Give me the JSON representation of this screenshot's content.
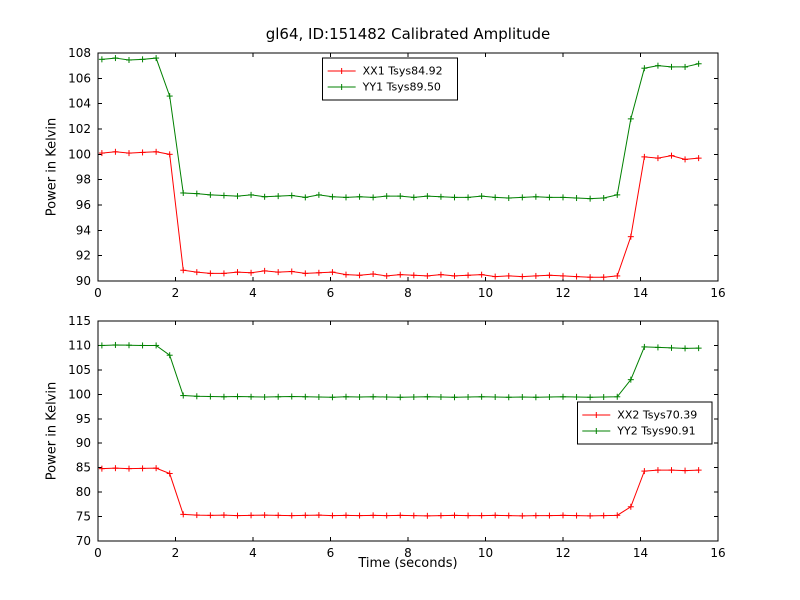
{
  "figure": {
    "title": "gl64, ID:151482 Calibrated Amplitude",
    "background": "#ffffff"
  },
  "colors": {
    "series_red": "#ff0000",
    "series_green": "#008000",
    "axes": "#000000"
  },
  "chart_data": [
    {
      "type": "line",
      "title": "",
      "xlabel": "",
      "ylabel": "Power in Kelvin",
      "xlim": [
        0,
        16
      ],
      "ylim": [
        90,
        108
      ],
      "xticks": [
        0,
        2,
        4,
        6,
        8,
        10,
        12,
        14,
        16
      ],
      "yticks": [
        90,
        92,
        94,
        96,
        98,
        100,
        102,
        104,
        106,
        108
      ],
      "grid": false,
      "legend": {
        "loc": "upper-center"
      },
      "x": [
        0.1,
        0.45,
        0.8,
        1.15,
        1.5,
        1.85,
        2.2,
        2.55,
        2.9,
        3.25,
        3.6,
        3.95,
        4.3,
        4.65,
        5.0,
        5.35,
        5.7,
        6.05,
        6.4,
        6.75,
        7.1,
        7.45,
        7.8,
        8.15,
        8.5,
        8.85,
        9.2,
        9.55,
        9.9,
        10.25,
        10.6,
        10.95,
        11.3,
        11.65,
        12.0,
        12.35,
        12.7,
        13.05,
        13.4,
        13.75,
        14.1,
        14.45,
        14.8,
        15.15,
        15.5
      ],
      "series": [
        {
          "name": "XX1 Tsys84.92",
          "color": "#ff0000",
          "marker": "+",
          "values": [
            100.1,
            100.2,
            100.1,
            100.15,
            100.2,
            100.0,
            90.85,
            90.7,
            90.6,
            90.6,
            90.7,
            90.65,
            90.8,
            90.7,
            90.75,
            90.6,
            90.65,
            90.7,
            90.5,
            90.45,
            90.55,
            90.4,
            90.5,
            90.45,
            90.4,
            90.5,
            90.4,
            90.45,
            90.5,
            90.35,
            90.4,
            90.35,
            90.4,
            90.45,
            90.4,
            90.35,
            90.3,
            90.3,
            90.4,
            93.5,
            99.8,
            99.7,
            99.9,
            99.6,
            99.7
          ]
        },
        {
          "name": "YY1 Tsys89.50",
          "color": "#008000",
          "marker": "+",
          "values": [
            107.5,
            107.6,
            107.45,
            107.5,
            107.6,
            104.6,
            96.95,
            96.9,
            96.8,
            96.75,
            96.7,
            96.8,
            96.65,
            96.7,
            96.75,
            96.6,
            96.8,
            96.65,
            96.6,
            96.65,
            96.6,
            96.7,
            96.7,
            96.6,
            96.7,
            96.65,
            96.6,
            96.6,
            96.7,
            96.6,
            96.55,
            96.6,
            96.65,
            96.6,
            96.6,
            96.55,
            96.5,
            96.55,
            96.8,
            102.8,
            106.8,
            107.0,
            106.9,
            106.9,
            107.15
          ]
        }
      ]
    },
    {
      "type": "line",
      "title": "",
      "xlabel": "Time (seconds)",
      "ylabel": "Power in Kelvin",
      "xlim": [
        0,
        16
      ],
      "ylim": [
        70,
        115
      ],
      "xticks": [
        0,
        2,
        4,
        6,
        8,
        10,
        12,
        14,
        16
      ],
      "yticks": [
        70,
        75,
        80,
        85,
        90,
        95,
        100,
        105,
        110,
        115
      ],
      "grid": false,
      "legend": {
        "loc": "center-right"
      },
      "x": [
        0.1,
        0.45,
        0.8,
        1.15,
        1.5,
        1.85,
        2.2,
        2.55,
        2.9,
        3.25,
        3.6,
        3.95,
        4.3,
        4.65,
        5.0,
        5.35,
        5.7,
        6.05,
        6.4,
        6.75,
        7.1,
        7.45,
        7.8,
        8.15,
        8.5,
        8.85,
        9.2,
        9.55,
        9.9,
        10.25,
        10.6,
        10.95,
        11.3,
        11.65,
        12.0,
        12.35,
        12.7,
        13.05,
        13.4,
        13.75,
        14.1,
        14.45,
        14.8,
        15.15,
        15.5
      ],
      "series": [
        {
          "name": "XX2 Tsys70.39",
          "color": "#ff0000",
          "marker": "+",
          "values": [
            84.8,
            84.9,
            84.8,
            84.85,
            84.9,
            83.8,
            75.45,
            75.3,
            75.25,
            75.3,
            75.2,
            75.25,
            75.3,
            75.25,
            75.2,
            75.25,
            75.3,
            75.2,
            75.25,
            75.2,
            75.25,
            75.2,
            75.25,
            75.2,
            75.15,
            75.2,
            75.25,
            75.2,
            75.2,
            75.25,
            75.2,
            75.15,
            75.2,
            75.2,
            75.25,
            75.2,
            75.15,
            75.2,
            75.25,
            77.0,
            84.3,
            84.5,
            84.5,
            84.4,
            84.5
          ]
        },
        {
          "name": "YY2 Tsys90.91",
          "color": "#008000",
          "marker": "+",
          "values": [
            110.0,
            110.1,
            110.05,
            110.0,
            110.0,
            108.0,
            99.75,
            99.6,
            99.55,
            99.5,
            99.55,
            99.5,
            99.45,
            99.5,
            99.55,
            99.5,
            99.45,
            99.4,
            99.5,
            99.45,
            99.5,
            99.45,
            99.4,
            99.45,
            99.5,
            99.45,
            99.4,
            99.45,
            99.5,
            99.45,
            99.4,
            99.45,
            99.4,
            99.45,
            99.5,
            99.45,
            99.4,
            99.45,
            99.5,
            103.0,
            109.7,
            109.6,
            109.5,
            109.4,
            109.45
          ]
        }
      ]
    }
  ]
}
